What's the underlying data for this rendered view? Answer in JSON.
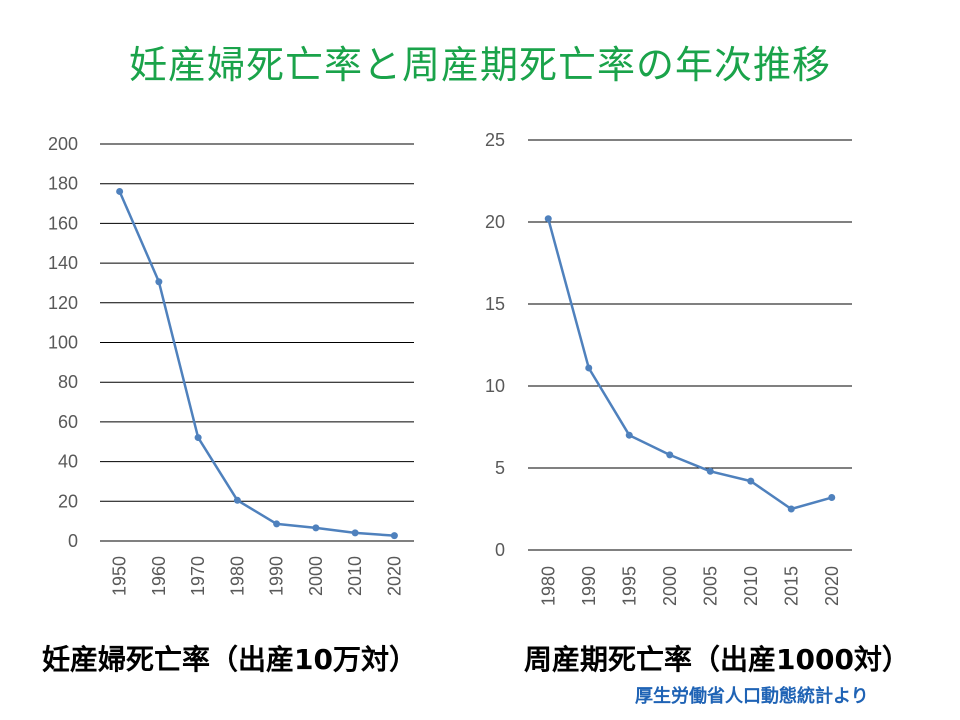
{
  "title": "妊産婦死亡率と周産期死亡率の年次推移",
  "source": "厚生労働省人口動態統計より",
  "colors": {
    "title": "#1aa34a",
    "line": "#4f81bd",
    "source": "#1f63b5",
    "grid": "#000000"
  },
  "chart_data": [
    {
      "type": "line",
      "caption": "妊産婦死亡率（出産10万対）",
      "categories": [
        "1950",
        "1960",
        "1970",
        "1980",
        "1990",
        "2000",
        "2010",
        "2020"
      ],
      "values": [
        176.1,
        130.6,
        52.1,
        20.5,
        8.6,
        6.6,
        4.1,
        2.7
      ],
      "ylim": [
        0,
        200
      ],
      "yticks": [
        0,
        20,
        40,
        60,
        80,
        100,
        120,
        140,
        160,
        180,
        200
      ],
      "grid": true
    },
    {
      "type": "line",
      "caption": "周産期死亡率（出産1000対）",
      "categories": [
        "1980",
        "1990",
        "1995",
        "2000",
        "2005",
        "2010",
        "2015",
        "2020"
      ],
      "values": [
        20.2,
        11.1,
        7.0,
        5.8,
        4.8,
        4.2,
        2.5,
        3.2
      ],
      "ylim": [
        0,
        25
      ],
      "yticks": [
        0,
        5,
        10,
        15,
        20,
        25
      ],
      "grid": true
    }
  ]
}
